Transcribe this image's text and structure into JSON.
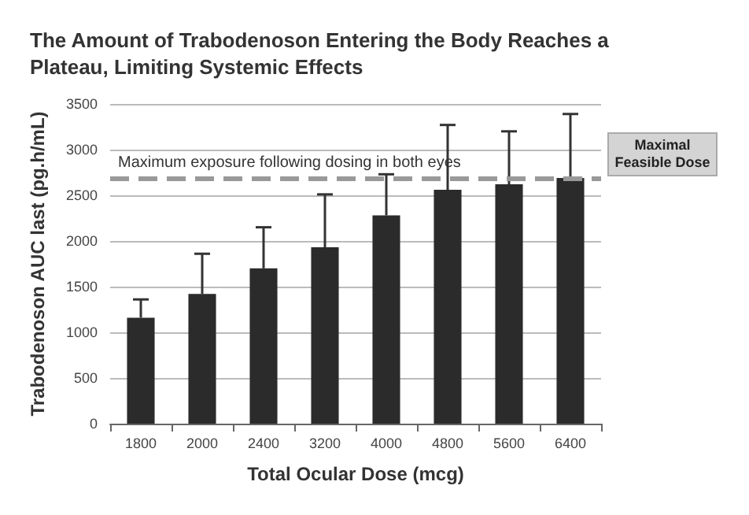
{
  "chart_data": {
    "type": "bar",
    "title": "The Amount of Trabodenoson Entering the Body Reaches a Plateau, Limiting Systemic Effects",
    "xlabel": "Total Ocular Dose (mcg)",
    "ylabel": "Trabodenoson AUC last (pg.h/mL)",
    "categories": [
      "1800",
      "2000",
      "2400",
      "3200",
      "4000",
      "4800",
      "5600",
      "6400"
    ],
    "values": [
      1160,
      1420,
      1700,
      1930,
      2280,
      2560,
      2620,
      2690
    ],
    "errors": [
      [
        1160,
        1360
      ],
      [
        1420,
        1860
      ],
      [
        1700,
        2150
      ],
      [
        1930,
        2510
      ],
      [
        2280,
        2730
      ],
      [
        2560,
        3270
      ],
      [
        2620,
        3200
      ],
      [
        2690,
        3390
      ]
    ],
    "color": "#2b2b2b",
    "ylim": [
      0,
      3500
    ],
    "yticks": [
      0,
      500,
      1000,
      1500,
      2000,
      2500,
      3000,
      3500
    ],
    "grid": "y",
    "ref_lines": [
      {
        "axis": "y",
        "value": 2680,
        "label": "Maximum exposure following dosing in both eyes",
        "color": "#999999",
        "line_style": "dashed"
      }
    ],
    "annotations": [
      "Maximal Feasible Dose"
    ]
  }
}
